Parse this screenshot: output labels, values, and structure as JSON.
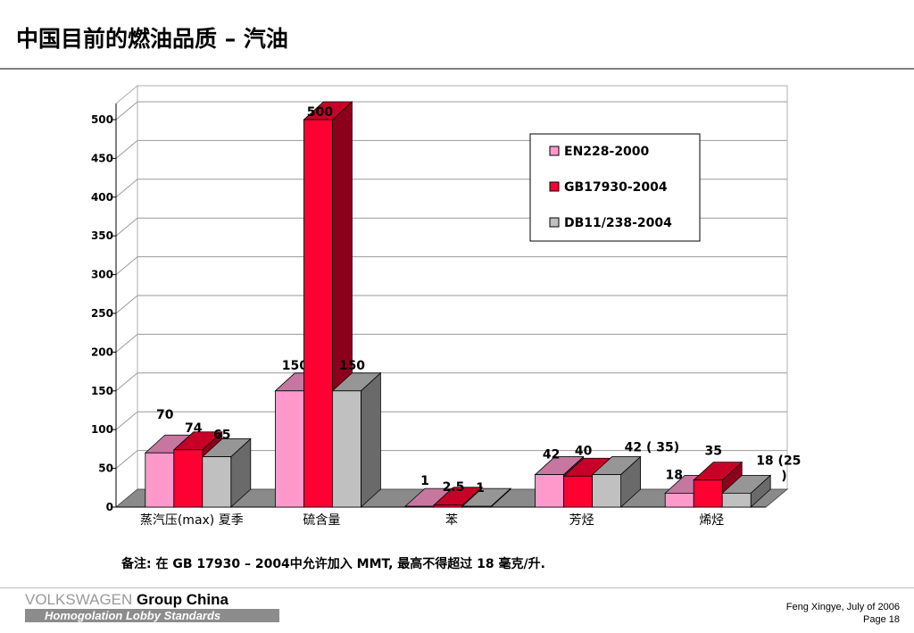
{
  "header": {
    "title": "中国目前的燃油品质 – 汽油"
  },
  "chart_data": {
    "type": "bar",
    "title": "",
    "xlabel": "",
    "ylabel": "",
    "ylim": [
      0,
      500
    ],
    "yticks": [
      0,
      50,
      100,
      150,
      200,
      250,
      300,
      350,
      400,
      450,
      500
    ],
    "categories": [
      "蒸汽压(max) 夏季",
      "硫含量",
      "苯",
      "芳烃",
      "烯烃"
    ],
    "series": [
      {
        "name": "EN228-2000",
        "color": "#ff99cc",
        "values": [
          70,
          150,
          1,
          42,
          18
        ],
        "labels": [
          "70",
          "150",
          "1",
          "42",
          "18"
        ]
      },
      {
        "name": "GB17930-2004",
        "color": "#ff0033",
        "values": [
          74,
          500,
          2.5,
          40,
          35
        ],
        "labels": [
          "74",
          "500",
          "2.5",
          "40",
          "35"
        ]
      },
      {
        "name": "DB11/238-2004",
        "color": "#c0c0c0",
        "values": [
          65,
          150,
          1,
          42,
          18
        ],
        "labels": [
          "65",
          "150",
          "1",
          "42 ( 35)",
          "18 (25 )"
        ]
      }
    ],
    "grid": true,
    "legend": "top-right",
    "three_d": true
  },
  "note": "备注: 在 GB 17930 – 2004中允许加入 MMT, 最高不得超过 18 毫克/升.",
  "footer": {
    "brand_vw": "VOLKSWAGEN",
    "brand_group": " Group China",
    "brand_sub": "Homogolation Lobby Standards",
    "author": "Feng Xingye, July of  2006",
    "page": "Page 18"
  }
}
